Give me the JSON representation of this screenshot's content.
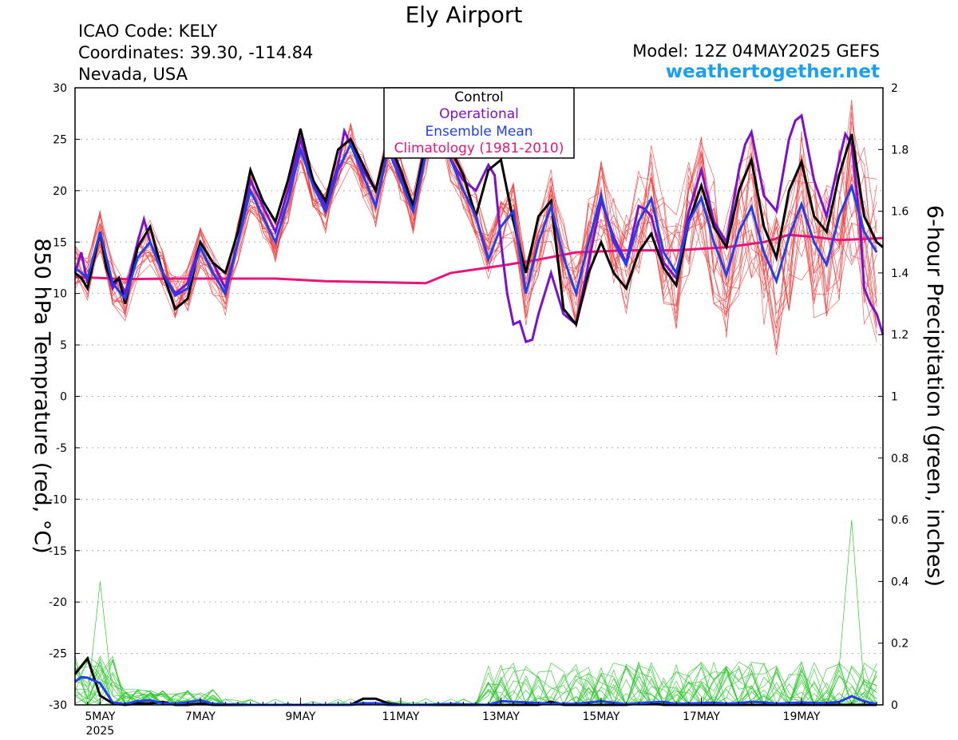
{
  "header": {
    "title": "Ely Airport",
    "icao": "ICAO Code: KELY",
    "coords": "Coordinates: 39.30, -114.84",
    "region": "Nevada, USA",
    "model": "Model: 12Z 04MAY2025 GEFS",
    "site": "weathertogether.net"
  },
  "colors": {
    "members_temp": "#f04040",
    "members_precip": "#30c830",
    "control": "#000000",
    "operational": "#7a10d0",
    "ensemble_mean": "#2040f0",
    "climatology": "#e8147a",
    "site_text": "#1aa0f0"
  },
  "chart_data": {
    "type": "line",
    "title": "Ely Airport",
    "ylabel": "850 hPa Temprature (red, °C)",
    "y2label": "6-hour Precipitation (green, inches)",
    "xlabel": "",
    "ylim": [
      -30,
      30
    ],
    "y2lim": [
      0,
      2
    ],
    "yticks": [
      30,
      25,
      20,
      15,
      10,
      5,
      0,
      -5,
      -10,
      -15,
      -20,
      -25,
      -30
    ],
    "y2ticks": [
      2,
      1.8,
      1.6,
      1.4,
      1.2,
      1,
      0.8,
      0.6,
      0.4,
      0.2,
      0
    ],
    "xlim_hours": [
      0,
      387
    ],
    "xticks": [
      {
        "label": "5MAY",
        "sub": "2025",
        "hour": 12
      },
      {
        "label": "7MAY",
        "sub": "",
        "hour": 60
      },
      {
        "label": "9MAY",
        "sub": "",
        "hour": 108
      },
      {
        "label": "11MAY",
        "sub": "",
        "hour": 156
      },
      {
        "label": "13MAY",
        "sub": "",
        "hour": 204
      },
      {
        "label": "15MAY",
        "sub": "",
        "hour": 252
      },
      {
        "label": "17MAY",
        "sub": "",
        "hour": 300
      },
      {
        "label": "19MAY",
        "sub": "",
        "hour": 348
      }
    ],
    "grid": true,
    "legend": {
      "position": "top-center",
      "entries": [
        "Control",
        "Operational",
        "Ensemble Mean",
        "Climatology (1981-2010)"
      ]
    },
    "temperature_series": {
      "control": [
        [
          0,
          12
        ],
        [
          3,
          11.5
        ],
        [
          6,
          10.5
        ],
        [
          12,
          16
        ],
        [
          15,
          12.5
        ],
        [
          18,
          11
        ],
        [
          21,
          11.5
        ],
        [
          24,
          9
        ],
        [
          30,
          14.5
        ],
        [
          36,
          16.5
        ],
        [
          42,
          12
        ],
        [
          48,
          8.5
        ],
        [
          54,
          9.5
        ],
        [
          60,
          15
        ],
        [
          66,
          13
        ],
        [
          72,
          12
        ],
        [
          78,
          16
        ],
        [
          84,
          22
        ],
        [
          90,
          19
        ],
        [
          96,
          17
        ],
        [
          102,
          21
        ],
        [
          108,
          26
        ],
        [
          114,
          21
        ],
        [
          120,
          19
        ],
        [
          126,
          24
        ],
        [
          132,
          25
        ],
        [
          138,
          22.5
        ],
        [
          144,
          20
        ],
        [
          150,
          25
        ],
        [
          156,
          22
        ],
        [
          162,
          18.5
        ],
        [
          168,
          24.5
        ],
        [
          174,
          29
        ],
        [
          180,
          24
        ],
        [
          186,
          21.5
        ],
        [
          192,
          17.5
        ],
        [
          198,
          22
        ],
        [
          204,
          23
        ],
        [
          210,
          17
        ],
        [
          216,
          12
        ],
        [
          222,
          17.5
        ],
        [
          228,
          19
        ],
        [
          234,
          8.5
        ],
        [
          240,
          7
        ],
        [
          246,
          12
        ],
        [
          252,
          15
        ],
        [
          258,
          12
        ],
        [
          264,
          10.5
        ],
        [
          270,
          14
        ],
        [
          276,
          15.8
        ],
        [
          282,
          12.5
        ],
        [
          288,
          10.8
        ],
        [
          294,
          17
        ],
        [
          300,
          20.5
        ],
        [
          306,
          16.5
        ],
        [
          312,
          14.5
        ],
        [
          318,
          20
        ],
        [
          324,
          23
        ],
        [
          330,
          16.5
        ],
        [
          336,
          13.5
        ],
        [
          342,
          20
        ],
        [
          348,
          22.8
        ],
        [
          354,
          17.5
        ],
        [
          360,
          16
        ],
        [
          366,
          21.5
        ],
        [
          372,
          25.5
        ],
        [
          378,
          17.5
        ],
        [
          384,
          15
        ],
        [
          387,
          14.5
        ]
      ],
      "operational": [
        [
          0,
          12
        ],
        [
          3,
          14
        ],
        [
          6,
          11
        ],
        [
          12,
          16
        ],
        [
          15,
          12.5
        ],
        [
          18,
          10.5
        ],
        [
          21,
          11.5
        ],
        [
          24,
          10
        ],
        [
          30,
          15
        ],
        [
          33,
          17.2
        ],
        [
          36,
          15
        ],
        [
          42,
          12
        ],
        [
          48,
          10
        ],
        [
          54,
          11
        ],
        [
          60,
          15
        ],
        [
          66,
          13
        ],
        [
          72,
          10.5
        ],
        [
          78,
          15
        ],
        [
          84,
          21
        ],
        [
          90,
          18.5
        ],
        [
          96,
          16
        ],
        [
          102,
          20
        ],
        [
          108,
          25
        ],
        [
          114,
          21
        ],
        [
          120,
          18.5
        ],
        [
          126,
          22.5
        ],
        [
          129,
          25.8
        ],
        [
          132,
          24.5
        ],
        [
          138,
          22
        ],
        [
          144,
          20
        ],
        [
          150,
          25
        ],
        [
          156,
          21.5
        ],
        [
          162,
          18.5
        ],
        [
          168,
          25
        ],
        [
          174,
          29
        ],
        [
          180,
          23
        ],
        [
          186,
          21
        ],
        [
          192,
          20
        ],
        [
          198,
          22.5
        ],
        [
          201,
          21.5
        ],
        [
          204,
          15
        ],
        [
          207,
          10
        ],
        [
          210,
          7
        ],
        [
          213,
          7.3
        ],
        [
          216,
          5.3
        ],
        [
          219,
          5.5
        ],
        [
          222,
          8
        ],
        [
          228,
          12
        ],
        [
          234,
          8
        ],
        [
          240,
          7
        ],
        [
          246,
          13
        ],
        [
          252,
          19
        ],
        [
          258,
          15.5
        ],
        [
          264,
          13
        ],
        [
          270,
          18.5
        ],
        [
          273,
          18.2
        ],
        [
          276,
          17.5
        ],
        [
          282,
          13
        ],
        [
          288,
          11.5
        ],
        [
          294,
          18
        ],
        [
          300,
          22
        ],
        [
          306,
          17
        ],
        [
          312,
          15
        ],
        [
          318,
          22
        ],
        [
          321,
          24.5
        ],
        [
          324,
          25.7
        ],
        [
          330,
          19.5
        ],
        [
          336,
          18
        ],
        [
          342,
          25
        ],
        [
          345,
          26.8
        ],
        [
          348,
          27.3
        ],
        [
          354,
          21
        ],
        [
          360,
          17.5
        ],
        [
          366,
          23
        ],
        [
          369,
          25.5
        ],
        [
          372,
          24.5
        ],
        [
          376,
          17
        ],
        [
          378,
          10.5
        ],
        [
          381,
          9
        ],
        [
          384,
          8
        ],
        [
          387,
          6
        ]
      ],
      "ensemble_mean": [
        [
          0,
          12.5
        ],
        [
          6,
          11.5
        ],
        [
          12,
          16
        ],
        [
          18,
          11
        ],
        [
          24,
          9.5
        ],
        [
          30,
          13.5
        ],
        [
          36,
          15
        ],
        [
          42,
          12
        ],
        [
          48,
          9.8
        ],
        [
          54,
          10.5
        ],
        [
          60,
          14.5
        ],
        [
          66,
          12
        ],
        [
          72,
          10
        ],
        [
          78,
          15
        ],
        [
          84,
          20
        ],
        [
          90,
          17.5
        ],
        [
          96,
          15
        ],
        [
          102,
          19
        ],
        [
          108,
          24
        ],
        [
          114,
          20.5
        ],
        [
          120,
          18
        ],
        [
          126,
          22
        ],
        [
          132,
          24.5
        ],
        [
          138,
          21.5
        ],
        [
          144,
          18.5
        ],
        [
          150,
          24
        ],
        [
          156,
          21
        ],
        [
          162,
          18
        ],
        [
          168,
          23.5
        ],
        [
          174,
          27.5
        ],
        [
          180,
          23
        ],
        [
          186,
          20
        ],
        [
          192,
          17.5
        ],
        [
          198,
          13.3
        ],
        [
          204,
          16.5
        ],
        [
          210,
          18
        ],
        [
          216,
          10
        ],
        [
          222,
          15
        ],
        [
          228,
          18.5
        ],
        [
          234,
          13.5
        ],
        [
          240,
          10
        ],
        [
          246,
          15
        ],
        [
          252,
          19.5
        ],
        [
          258,
          15
        ],
        [
          264,
          12.8
        ],
        [
          270,
          17
        ],
        [
          276,
          19.2
        ],
        [
          282,
          14
        ],
        [
          288,
          12
        ],
        [
          294,
          17
        ],
        [
          300,
          19.3
        ],
        [
          306,
          15
        ],
        [
          312,
          11.8
        ],
        [
          318,
          16
        ],
        [
          324,
          18.4
        ],
        [
          330,
          14
        ],
        [
          336,
          11.2
        ],
        [
          342,
          15.5
        ],
        [
          348,
          18.7
        ],
        [
          354,
          15
        ],
        [
          360,
          12.8
        ],
        [
          366,
          17.5
        ],
        [
          372,
          20.4
        ],
        [
          378,
          16
        ],
        [
          384,
          14
        ]
      ],
      "climatology": [
        [
          0,
          11.6
        ],
        [
          12,
          11.5
        ],
        [
          24,
          11.4
        ],
        [
          48,
          11.45
        ],
        [
          72,
          11.45
        ],
        [
          96,
          11.45
        ],
        [
          120,
          11.2
        ],
        [
          144,
          11.1
        ],
        [
          168,
          11
        ],
        [
          180,
          12
        ],
        [
          204,
          12.7
        ],
        [
          222,
          13.3
        ],
        [
          240,
          14
        ],
        [
          264,
          14.2
        ],
        [
          288,
          14.2
        ],
        [
          312,
          14.5
        ],
        [
          330,
          15
        ],
        [
          342,
          15.7
        ],
        [
          354,
          15.5
        ],
        [
          366,
          15.2
        ],
        [
          378,
          15.3
        ],
        [
          387,
          15.4
        ]
      ]
    },
    "precip_series": {
      "control": [
        [
          0,
          0.1
        ],
        [
          6,
          0.15
        ],
        [
          12,
          0.03
        ],
        [
          18,
          0.005
        ],
        [
          24,
          0
        ],
        [
          30,
          0.005
        ],
        [
          36,
          0.005
        ],
        [
          42,
          0.01
        ],
        [
          48,
          0
        ],
        [
          54,
          0
        ],
        [
          60,
          0.005
        ],
        [
          66,
          0
        ],
        [
          72,
          0
        ],
        [
          132,
          0
        ],
        [
          138,
          0.02
        ],
        [
          144,
          0.02
        ],
        [
          150,
          0.005
        ],
        [
          156,
          0
        ],
        [
          222,
          0
        ],
        [
          228,
          0.01
        ],
        [
          234,
          0
        ],
        [
          240,
          0
        ],
        [
          264,
          0
        ],
        [
          270,
          0.005
        ],
        [
          276,
          0.005
        ],
        [
          282,
          0
        ],
        [
          384,
          0
        ]
      ],
      "ensemble_mean": [
        [
          0,
          0.075
        ],
        [
          3,
          0.09
        ],
        [
          6,
          0.088
        ],
        [
          12,
          0.07
        ],
        [
          18,
          0.008
        ],
        [
          24,
          0.002
        ],
        [
          30,
          0.012
        ],
        [
          36,
          0.015
        ],
        [
          42,
          0.005
        ],
        [
          48,
          0.003
        ],
        [
          54,
          0.008
        ],
        [
          60,
          0.015
        ],
        [
          66,
          0.003
        ],
        [
          72,
          0.002
        ],
        [
          84,
          0
        ],
        [
          96,
          0
        ],
        [
          108,
          0
        ],
        [
          120,
          0
        ],
        [
          132,
          0
        ],
        [
          138,
          0.005
        ],
        [
          144,
          0.006
        ],
        [
          150,
          0
        ],
        [
          168,
          0
        ],
        [
          180,
          0.003
        ],
        [
          198,
          0
        ],
        [
          204,
          0.012
        ],
        [
          216,
          0.008
        ],
        [
          228,
          0.004
        ],
        [
          240,
          0.003
        ],
        [
          252,
          0.012
        ],
        [
          264,
          0.002
        ],
        [
          276,
          0.008
        ],
        [
          282,
          0.01
        ],
        [
          288,
          0.003
        ],
        [
          300,
          0.006
        ],
        [
          306,
          0.007
        ],
        [
          312,
          0.004
        ],
        [
          318,
          0.006
        ],
        [
          324,
          0.01
        ],
        [
          330,
          0.008
        ],
        [
          336,
          0.004
        ],
        [
          342,
          0.006
        ],
        [
          348,
          0.008
        ],
        [
          354,
          0.006
        ],
        [
          360,
          0.006
        ],
        [
          366,
          0.01
        ],
        [
          372,
          0.028
        ],
        [
          378,
          0.012
        ],
        [
          384,
          0.002
        ]
      ]
    }
  }
}
